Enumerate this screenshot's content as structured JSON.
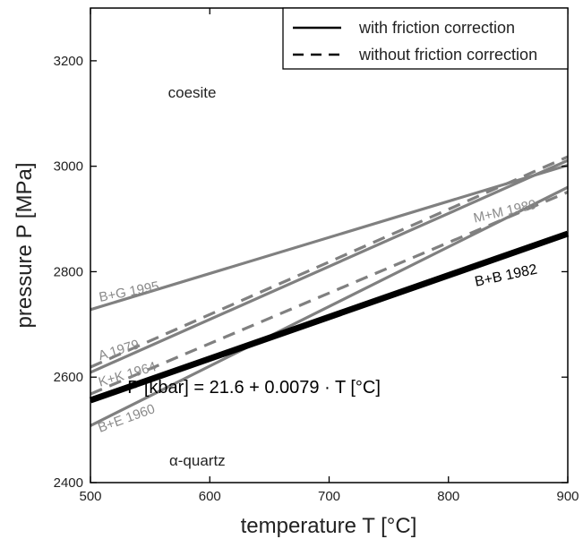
{
  "chart_data": {
    "type": "line",
    "title": "",
    "xlabel": "temperature T [°C]",
    "ylabel": "pressure P [MPa]",
    "xlim": [
      500,
      900
    ],
    "ylim": [
      2400,
      3300
    ],
    "xticks": [
      500,
      600,
      700,
      800,
      900
    ],
    "yticks": [
      2400,
      2600,
      2800,
      3000,
      3200
    ],
    "grid": false,
    "legend_position": "top-right",
    "legend": [
      {
        "label": "with friction correction",
        "style": "solid"
      },
      {
        "label": "without friction correction",
        "style": "dashed"
      }
    ],
    "series": [
      {
        "name": "B+G 1995",
        "style": "solid",
        "color": "#808080",
        "x": [
          500,
          900
        ],
        "y": [
          2728,
          3002
        ]
      },
      {
        "name": "A 1979",
        "style": "dashed",
        "color": "#808080",
        "x": [
          500,
          900
        ],
        "y": [
          2619,
          3018
        ]
      },
      {
        "name": "",
        "style": "solid",
        "color": "#808080",
        "x": [
          500,
          900
        ],
        "y": [
          2609,
          3011
        ]
      },
      {
        "name": "K+K 1964",
        "style": "dashed",
        "color": "#808080",
        "x": [
          500,
          900
        ],
        "y": [
          2568,
          2951
        ]
      },
      {
        "name": "B+E 1960",
        "style": "solid",
        "color": "#808080",
        "x": [
          500,
          900
        ],
        "y": [
          2508,
          2960
        ]
      },
      {
        "name": "B+B 1982",
        "style": "solid-bold",
        "color": "#000000",
        "x": [
          500,
          900
        ],
        "y": [
          2556,
          2872
        ]
      }
    ],
    "series_labels": [
      {
        "text": "B+G 1995",
        "x": 508,
        "y": 2743,
        "angle": -11,
        "color": "#8a8a8a"
      },
      {
        "text": "A 1979",
        "x": 508,
        "y": 2632,
        "angle": -17,
        "color": "#8a8a8a"
      },
      {
        "text": "K+K 1964",
        "x": 508,
        "y": 2582,
        "angle": -16,
        "color": "#8a8a8a"
      },
      {
        "text": "B+E 1960",
        "x": 508,
        "y": 2495,
        "angle": -20,
        "color": "#8a8a8a"
      },
      {
        "text": "M+M 1980",
        "x": 822,
        "y": 2893,
        "angle": -13,
        "color": "#8a8a8a"
      },
      {
        "text": "B+B 1982",
        "x": 823,
        "y": 2772,
        "angle": -12,
        "color": "#000000"
      }
    ],
    "annotations": [
      {
        "text": "coesite",
        "x": 565,
        "y": 3130
      },
      {
        "text": "α-quartz",
        "x": 566,
        "y": 2432
      },
      {
        "text": "P [kbar] = 21.6 + 0.0079 · T [°C]",
        "x": 531,
        "y": 2570
      }
    ]
  }
}
